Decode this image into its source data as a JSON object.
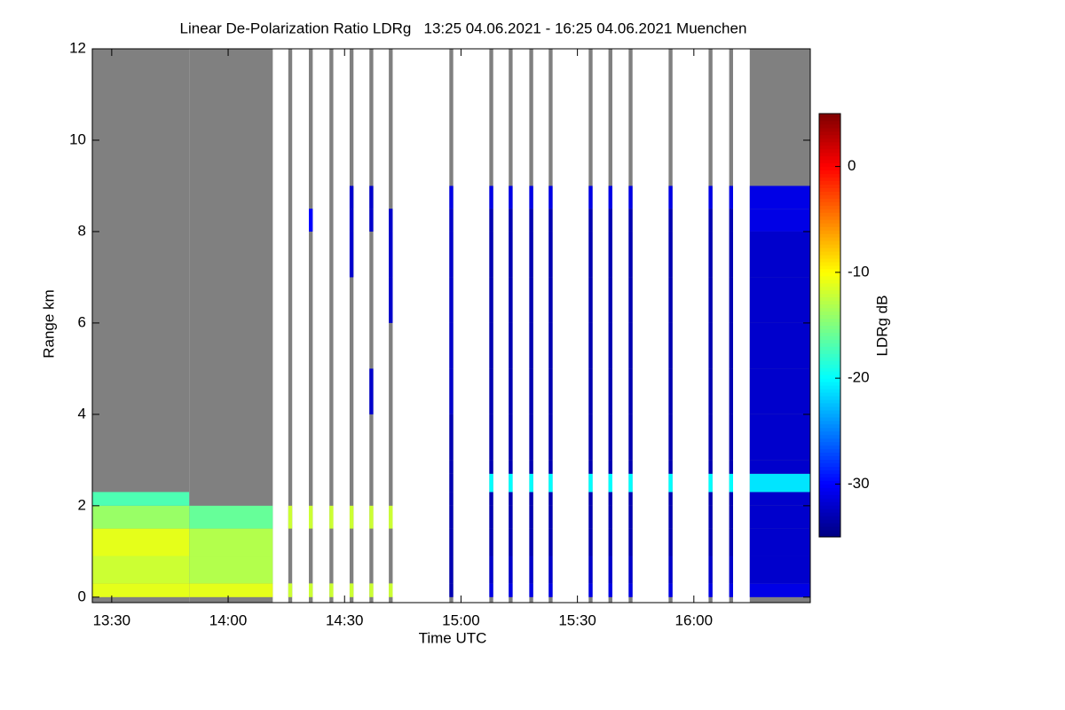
{
  "chart_data": {
    "type": "heatmap",
    "title": "Linear De-Polarization Ratio LDRg   13:25 04.06.2021 - 16:25 04.06.2021 Muenchen",
    "x_label": "Time UTC",
    "y_label": "Range km",
    "colorbar_label": "LDRg dB",
    "colormap": "jet",
    "no_signal_color": "#808080",
    "xlim": [
      805,
      990
    ],
    "ylim": [
      -0.12,
      12
    ],
    "xticks": [
      {
        "value": 810,
        "label": "13:30"
      },
      {
        "value": 840,
        "label": "14:00"
      },
      {
        "value": 870,
        "label": "14:30"
      },
      {
        "value": 900,
        "label": "15:00"
      },
      {
        "value": 930,
        "label": "15:30"
      },
      {
        "value": 960,
        "label": "16:00"
      }
    ],
    "yticks": [
      0,
      2,
      4,
      6,
      8,
      10,
      12
    ],
    "clim": [
      -35,
      5
    ],
    "cticks": [
      0,
      -10,
      -20,
      -30
    ],
    "y_bins": [
      0,
      0.3,
      0.9,
      1.5,
      2.0,
      2.3,
      2.7,
      3.0,
      4.0,
      5.0,
      6.0,
      7.0,
      8.0,
      8.5,
      9.0,
      10.0,
      12.0
    ],
    "columns": [
      {
        "x0": 805,
        "x1": 830,
        "z": [
          -11,
          -12,
          -11,
          -14,
          -17,
          null,
          null,
          null,
          null,
          null,
          null,
          null,
          null,
          null,
          null,
          null
        ]
      },
      {
        "x0": 830,
        "x1": 851.5,
        "z": [
          -11,
          -13,
          -13,
          -16,
          null,
          null,
          null,
          null,
          null,
          null,
          null,
          null,
          null,
          null,
          null,
          null
        ]
      },
      {
        "x0": 855.5,
        "x1": 856.5,
        "z": [
          -12,
          null,
          null,
          -12,
          null,
          null,
          null,
          null,
          null,
          null,
          null,
          null,
          null,
          null,
          null,
          null
        ]
      },
      {
        "x0": 860.8,
        "x1": 861.8,
        "z": [
          -12,
          null,
          null,
          -12,
          null,
          null,
          null,
          null,
          null,
          null,
          null,
          null,
          -30,
          null,
          null,
          null
        ]
      },
      {
        "x0": 866.1,
        "x1": 867.1,
        "z": [
          -12,
          null,
          null,
          -12,
          null,
          null,
          null,
          null,
          null,
          null,
          null,
          null,
          null,
          null,
          null,
          null
        ]
      },
      {
        "x0": 871.3,
        "x1": 872.3,
        "z": [
          -12,
          null,
          null,
          -12,
          null,
          null,
          null,
          null,
          null,
          null,
          null,
          -32,
          -32,
          -32,
          null,
          null
        ]
      },
      {
        "x0": 876.4,
        "x1": 877.4,
        "z": [
          -12,
          null,
          null,
          -12,
          null,
          null,
          null,
          null,
          -32,
          null,
          null,
          null,
          -32,
          -32,
          null,
          null
        ]
      },
      {
        "x0": 881.4,
        "x1": 882.4,
        "z": [
          -12,
          null,
          null,
          -12,
          null,
          null,
          null,
          null,
          null,
          null,
          -32,
          -32,
          -32,
          null,
          null,
          null
        ]
      },
      {
        "x0": 897,
        "x1": 898,
        "z": [
          -33,
          -33,
          -33,
          -33,
          -33,
          -33,
          -33,
          -33,
          -32,
          -32,
          -32,
          -32,
          -32,
          -31,
          null,
          null
        ]
      },
      {
        "x0": 907.3,
        "x1": 908.3,
        "z": [
          -31,
          -32,
          -33,
          -33,
          -33,
          -20,
          -33,
          -33,
          -33,
          -33,
          -33,
          -33,
          -33,
          -31,
          null,
          null
        ]
      },
      {
        "x0": 912.3,
        "x1": 913.3,
        "z": [
          -31,
          -32,
          -33,
          -33,
          -33,
          -20,
          -33,
          -33,
          -33,
          -33,
          -33,
          -33,
          -33,
          -31,
          null,
          null
        ]
      },
      {
        "x0": 917.6,
        "x1": 918.6,
        "z": [
          -31,
          -32,
          -33,
          -33,
          -33,
          -20,
          -33,
          -33,
          -33,
          -33,
          -33,
          -33,
          -33,
          -31,
          null,
          null
        ]
      },
      {
        "x0": 922.6,
        "x1": 923.6,
        "z": [
          -31,
          -32,
          -33,
          -33,
          -33,
          -20,
          -33,
          -33,
          -33,
          -33,
          -33,
          -33,
          -33,
          -31,
          null,
          null
        ]
      },
      {
        "x0": 932.9,
        "x1": 933.9,
        "z": [
          -31,
          -32,
          -33,
          -33,
          -33,
          -20,
          -33,
          -33,
          -33,
          -33,
          -33,
          -33,
          -33,
          -31,
          null,
          null
        ]
      },
      {
        "x0": 938,
        "x1": 939,
        "z": [
          -31,
          -32,
          -33,
          -33,
          -33,
          -20,
          -33,
          -33,
          -33,
          -33,
          -33,
          -33,
          -33,
          -31,
          null,
          null
        ]
      },
      {
        "x0": 943.2,
        "x1": 944.2,
        "z": [
          -31,
          -32,
          -33,
          -33,
          -33,
          -20,
          -33,
          -33,
          -33,
          -33,
          -33,
          -33,
          -33,
          -31,
          null,
          null
        ]
      },
      {
        "x0": 953.5,
        "x1": 954.5,
        "z": [
          -31,
          -32,
          -33,
          -33,
          -33,
          -20,
          -33,
          -33,
          -33,
          -33,
          -33,
          -33,
          -33,
          -31,
          null,
          null
        ]
      },
      {
        "x0": 963.8,
        "x1": 964.8,
        "z": [
          -31,
          -32,
          -33,
          -33,
          -33,
          -20,
          -33,
          -33,
          -33,
          -33,
          -33,
          -33,
          -33,
          -31,
          null,
          null
        ]
      },
      {
        "x0": 969.1,
        "x1": 970.1,
        "z": [
          -31,
          -32,
          -33,
          -33,
          -33,
          -20,
          -33,
          -33,
          -33,
          -33,
          -33,
          -33,
          -33,
          -31,
          null,
          null
        ]
      },
      {
        "x0": 974.4,
        "x1": 990,
        "z": [
          -31,
          -32,
          -32,
          -32,
          -32,
          -21,
          -32,
          -32,
          -32,
          -32,
          -32,
          -32,
          -31,
          -31,
          null,
          null
        ]
      }
    ]
  }
}
